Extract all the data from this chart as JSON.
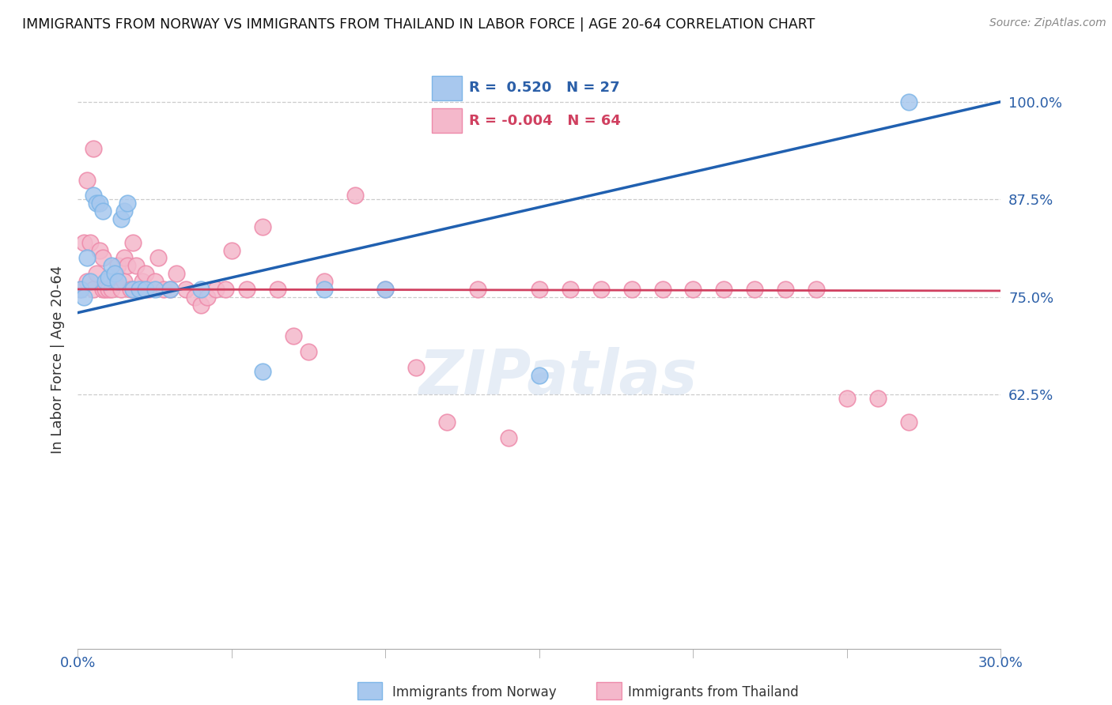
{
  "title": "IMMIGRANTS FROM NORWAY VS IMMIGRANTS FROM THAILAND IN LABOR FORCE | AGE 20-64 CORRELATION CHART",
  "source": "Source: ZipAtlas.com",
  "ylabel": "In Labor Force | Age 20-64",
  "xlim": [
    0.0,
    0.3
  ],
  "ylim": [
    0.3,
    1.04
  ],
  "xticks": [
    0.0,
    0.05,
    0.1,
    0.15,
    0.2,
    0.25,
    0.3
  ],
  "xtick_labels": [
    "0.0%",
    "",
    "",
    "",
    "",
    "",
    "30.0%"
  ],
  "ytick_positions": [
    0.625,
    0.75,
    0.875,
    1.0
  ],
  "ytick_labels": [
    "62.5%",
    "75.0%",
    "87.5%",
    "100.0%"
  ],
  "norway_color": "#A8C8EE",
  "norway_edge_color": "#7EB6E8",
  "thailand_color": "#F4B8CB",
  "thailand_edge_color": "#EE8AAA",
  "norway_R": 0.52,
  "norway_N": 27,
  "thailand_R": -0.004,
  "thailand_N": 64,
  "trend_norway_color": "#2060B0",
  "trend_thailand_color": "#D04060",
  "legend_label_norway": "Immigrants from Norway",
  "legend_label_thailand": "Immigrants from Thailand",
  "norway_x": [
    0.001,
    0.002,
    0.003,
    0.004,
    0.005,
    0.006,
    0.007,
    0.008,
    0.009,
    0.01,
    0.011,
    0.012,
    0.013,
    0.014,
    0.015,
    0.016,
    0.018,
    0.02,
    0.022,
    0.025,
    0.03,
    0.04,
    0.06,
    0.08,
    0.1,
    0.15,
    0.27
  ],
  "norway_y": [
    0.76,
    0.75,
    0.8,
    0.77,
    0.88,
    0.87,
    0.87,
    0.86,
    0.77,
    0.775,
    0.79,
    0.78,
    0.77,
    0.85,
    0.86,
    0.87,
    0.76,
    0.76,
    0.76,
    0.76,
    0.76,
    0.76,
    0.655,
    0.76,
    0.76,
    0.65,
    1.0
  ],
  "thailand_x": [
    0.001,
    0.002,
    0.003,
    0.003,
    0.004,
    0.005,
    0.005,
    0.006,
    0.007,
    0.008,
    0.008,
    0.009,
    0.01,
    0.011,
    0.012,
    0.013,
    0.014,
    0.015,
    0.015,
    0.016,
    0.017,
    0.018,
    0.019,
    0.02,
    0.021,
    0.022,
    0.023,
    0.025,
    0.026,
    0.028,
    0.03,
    0.032,
    0.035,
    0.038,
    0.04,
    0.042,
    0.045,
    0.048,
    0.05,
    0.055,
    0.06,
    0.065,
    0.07,
    0.075,
    0.08,
    0.09,
    0.1,
    0.11,
    0.12,
    0.13,
    0.14,
    0.15,
    0.16,
    0.17,
    0.18,
    0.19,
    0.2,
    0.21,
    0.22,
    0.23,
    0.24,
    0.25,
    0.26,
    0.27
  ],
  "thailand_y": [
    0.76,
    0.82,
    0.9,
    0.77,
    0.82,
    0.76,
    0.94,
    0.78,
    0.81,
    0.76,
    0.8,
    0.76,
    0.76,
    0.76,
    0.77,
    0.79,
    0.76,
    0.77,
    0.8,
    0.79,
    0.76,
    0.82,
    0.79,
    0.76,
    0.77,
    0.78,
    0.76,
    0.77,
    0.8,
    0.76,
    0.76,
    0.78,
    0.76,
    0.75,
    0.74,
    0.75,
    0.76,
    0.76,
    0.81,
    0.76,
    0.84,
    0.76,
    0.7,
    0.68,
    0.77,
    0.88,
    0.76,
    0.66,
    0.59,
    0.76,
    0.57,
    0.76,
    0.76,
    0.76,
    0.76,
    0.76,
    0.76,
    0.76,
    0.76,
    0.76,
    0.76,
    0.62,
    0.62,
    0.59
  ],
  "norway_trend_x0": 0.0,
  "norway_trend_y0": 0.73,
  "norway_trend_x1": 0.3,
  "norway_trend_y1": 1.0,
  "thailand_trend_x0": 0.0,
  "thailand_trend_y0": 0.76,
  "thailand_trend_x1": 0.3,
  "thailand_trend_y1": 0.758
}
